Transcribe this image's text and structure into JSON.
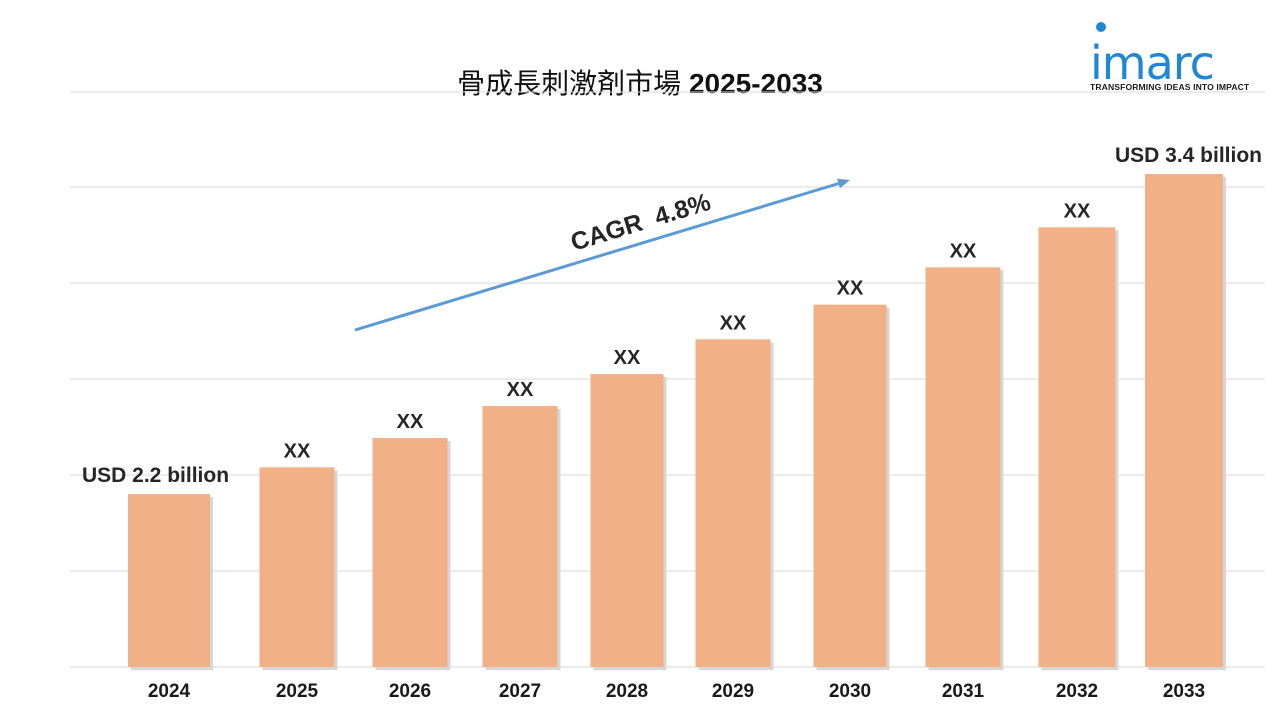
{
  "chart_data": {
    "type": "bar",
    "title": "骨成長刺激剤市場 2025-2033",
    "title_main": "骨成長刺激剤市場",
    "title_years": "2025-2033",
    "categories": [
      "2024",
      "2025",
      "2026",
      "2027",
      "2028",
      "2029",
      "2030",
      "2031",
      "2032",
      "2033"
    ],
    "values": [
      2.2,
      2.3,
      2.41,
      2.53,
      2.65,
      2.78,
      2.91,
      3.05,
      3.2,
      3.4
    ],
    "data_labels": [
      "USD 2.2 billion",
      "XX",
      "XX",
      "XX",
      "XX",
      "XX",
      "XX",
      "XX",
      "XX",
      "USD 3.4 billion"
    ],
    "unit": "USD billion",
    "annotation": "CAGR  4.8%",
    "grid": true,
    "bar_color": "#f2b086",
    "arrow_color": "#5b9bd5",
    "gridline_color": "#d9d9d9"
  },
  "logo": {
    "word": "imarc",
    "tagline": "TRANSFORMING IDEAS INTO IMPACT",
    "color": "#1e88d6"
  }
}
